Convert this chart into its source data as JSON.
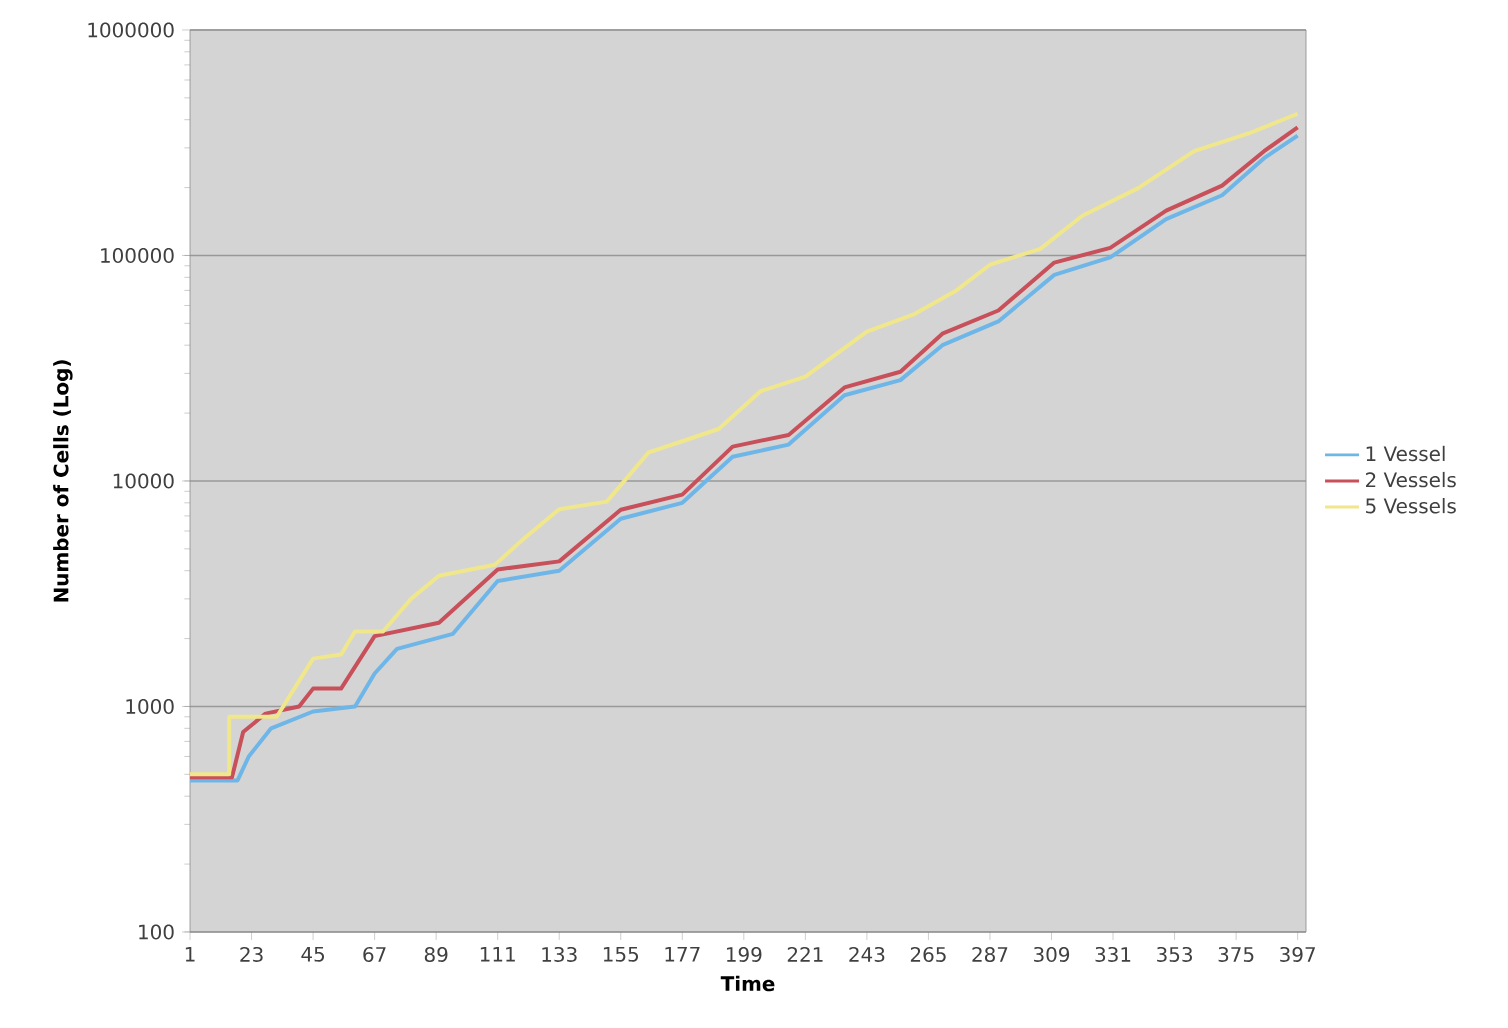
{
  "chart_data": {
    "type": "line",
    "xlabel": "Time",
    "ylabel": "Number of Cells (Log)",
    "log": "y",
    "grid": "y",
    "legend": "right",
    "xlim": [
      1,
      400
    ],
    "xticks": [
      1,
      23,
      45,
      67,
      89,
      111,
      133,
      155,
      177,
      199,
      221,
      243,
      265,
      287,
      309,
      331,
      353,
      375,
      397
    ],
    "ylim": [
      100,
      1000000
    ],
    "yticks": [
      100,
      1000,
      10000,
      100000,
      1000000
    ],
    "series": [
      {
        "name": "1 Vessel",
        "color": "#6fb6e8",
        "x": [
          1,
          18,
          22,
          30,
          45,
          60,
          67,
          75,
          95,
          111,
          133,
          155,
          177,
          195,
          215,
          235,
          255,
          270,
          290,
          310,
          330,
          350,
          370,
          385,
          397
        ],
        "values": [
          470,
          470,
          600,
          800,
          950,
          1000,
          1400,
          1800,
          2100,
          3600,
          4000,
          6800,
          8000,
          12800,
          14500,
          24000,
          28000,
          40000,
          51000,
          82000,
          98000,
          145000,
          185000,
          270000,
          340000
        ]
      },
      {
        "name": "2 Vessels",
        "color": "#c8505a",
        "x": [
          1,
          16,
          20,
          28,
          40,
          45,
          55,
          67,
          90,
          111,
          133,
          155,
          177,
          195,
          215,
          235,
          255,
          270,
          290,
          310,
          330,
          350,
          370,
          385,
          397
        ],
        "values": [
          485,
          485,
          770,
          930,
          1000,
          1200,
          1200,
          2050,
          2350,
          4050,
          4400,
          7450,
          8700,
          14200,
          16000,
          26000,
          30500,
          45000,
          57000,
          93000,
          108000,
          158000,
          204000,
          290000,
          370000
        ]
      },
      {
        "name": "5 Vessels",
        "color": "#f0e68c",
        "x": [
          1,
          15,
          15,
          32,
          45,
          55,
          60,
          70,
          80,
          90,
          110,
          120,
          133,
          150,
          165,
          177,
          190,
          205,
          221,
          243,
          260,
          275,
          287,
          305,
          320,
          340,
          360,
          380,
          397
        ],
        "values": [
          500,
          500,
          900,
          900,
          1630,
          1700,
          2150,
          2150,
          3000,
          3800,
          4250,
          5500,
          7500,
          8100,
          13400,
          15000,
          17000,
          25000,
          29000,
          46000,
          55000,
          70000,
          91000,
          107000,
          150000,
          199000,
          290000,
          350000,
          425000
        ]
      }
    ]
  }
}
